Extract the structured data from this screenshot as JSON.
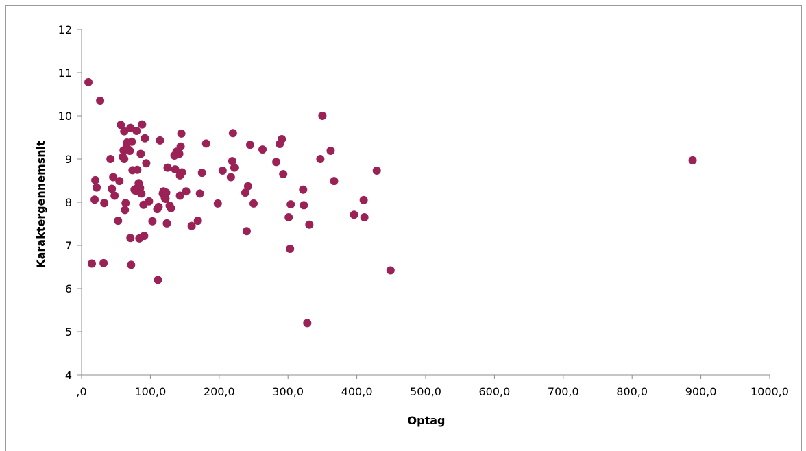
{
  "chart_data": {
    "type": "scatter",
    "title": "",
    "xlabel": "Optag",
    "ylabel": "Karaktergennemsnit",
    "xlim": [
      0,
      1000
    ],
    "ylim": [
      4,
      12
    ],
    "grid": false,
    "legend": "none",
    "x_tick_labels": [
      ",0",
      "100,0",
      "200,0",
      "300,0",
      "400,0",
      "500,0",
      "600,0",
      "700,0",
      "800,0",
      "900,0",
      "1000,0"
    ],
    "y_tick_labels": [
      "4",
      "5",
      "6",
      "7",
      "8",
      "9",
      "10",
      "11",
      "12"
    ],
    "marker_color": "#9b2257",
    "points": [
      [
        10,
        10.78
      ],
      [
        15,
        6.58
      ],
      [
        19,
        8.06
      ],
      [
        20,
        8.51
      ],
      [
        22,
        8.34
      ],
      [
        27,
        10.35
      ],
      [
        32,
        6.59
      ],
      [
        33,
        7.98
      ],
      [
        42,
        9.0
      ],
      [
        44,
        8.31
      ],
      [
        46,
        8.58
      ],
      [
        48,
        8.15
      ],
      [
        53,
        7.57
      ],
      [
        55,
        8.49
      ],
      [
        57,
        9.79
      ],
      [
        60,
        9.05
      ],
      [
        61,
        9.2
      ],
      [
        62,
        9.0
      ],
      [
        62,
        9.64
      ],
      [
        63,
        7.82
      ],
      [
        64,
        7.98
      ],
      [
        65,
        9.25
      ],
      [
        66,
        9.38
      ],
      [
        68,
        9.22
      ],
      [
        70,
        9.19
      ],
      [
        71,
        7.17
      ],
      [
        71,
        9.72
      ],
      [
        72,
        6.55
      ],
      [
        73,
        9.4
      ],
      [
        74,
        8.74
      ],
      [
        77,
        8.29
      ],
      [
        78,
        8.27
      ],
      [
        79,
        8.31
      ],
      [
        80,
        9.65
      ],
      [
        81,
        8.75
      ],
      [
        82,
        8.25
      ],
      [
        83,
        8.44
      ],
      [
        84,
        7.16
      ],
      [
        85,
        8.33
      ],
      [
        86,
        9.12
      ],
      [
        87,
        8.2
      ],
      [
        88,
        9.8
      ],
      [
        90,
        7.94
      ],
      [
        91,
        7.22
      ],
      [
        92,
        9.48
      ],
      [
        94,
        8.9
      ],
      [
        98,
        8.02
      ],
      [
        103,
        7.56
      ],
      [
        110,
        7.84
      ],
      [
        111,
        6.2
      ],
      [
        112,
        7.89
      ],
      [
        114,
        9.43
      ],
      [
        118,
        8.2
      ],
      [
        119,
        8.25
      ],
      [
        121,
        8.1
      ],
      [
        122,
        8.08
      ],
      [
        123,
        8.22
      ],
      [
        124,
        7.51
      ],
      [
        125,
        8.8
      ],
      [
        128,
        7.92
      ],
      [
        130,
        7.86
      ],
      [
        135,
        9.08
      ],
      [
        136,
        8.76
      ],
      [
        138,
        9.17
      ],
      [
        142,
        9.12
      ],
      [
        143,
        8.15
      ],
      [
        143,
        8.62
      ],
      [
        144,
        9.29
      ],
      [
        145,
        9.59
      ],
      [
        146,
        8.69
      ],
      [
        152,
        8.25
      ],
      [
        160,
        7.45
      ],
      [
        169,
        7.57
      ],
      [
        172,
        8.2
      ],
      [
        175,
        8.68
      ],
      [
        181,
        9.36
      ],
      [
        198,
        7.97
      ],
      [
        205,
        8.73
      ],
      [
        217,
        8.58
      ],
      [
        219,
        8.95
      ],
      [
        220,
        9.6
      ],
      [
        222,
        8.8
      ],
      [
        238,
        8.22
      ],
      [
        240,
        7.33
      ],
      [
        242,
        8.37
      ],
      [
        245,
        9.33
      ],
      [
        250,
        7.97
      ],
      [
        263,
        9.22
      ],
      [
        283,
        8.93
      ],
      [
        288,
        9.35
      ],
      [
        291,
        9.46
      ],
      [
        293,
        8.65
      ],
      [
        301,
        7.65
      ],
      [
        303,
        6.92
      ],
      [
        304,
        7.95
      ],
      [
        322,
        8.29
      ],
      [
        323,
        7.93
      ],
      [
        328,
        5.2
      ],
      [
        331,
        7.48
      ],
      [
        347,
        9.0
      ],
      [
        350,
        10.0
      ],
      [
        362,
        9.19
      ],
      [
        367,
        8.49
      ],
      [
        396,
        7.71
      ],
      [
        410,
        8.05
      ],
      [
        411,
        7.65
      ],
      [
        429,
        8.73
      ],
      [
        449,
        6.42
      ],
      [
        888,
        8.97
      ]
    ]
  }
}
